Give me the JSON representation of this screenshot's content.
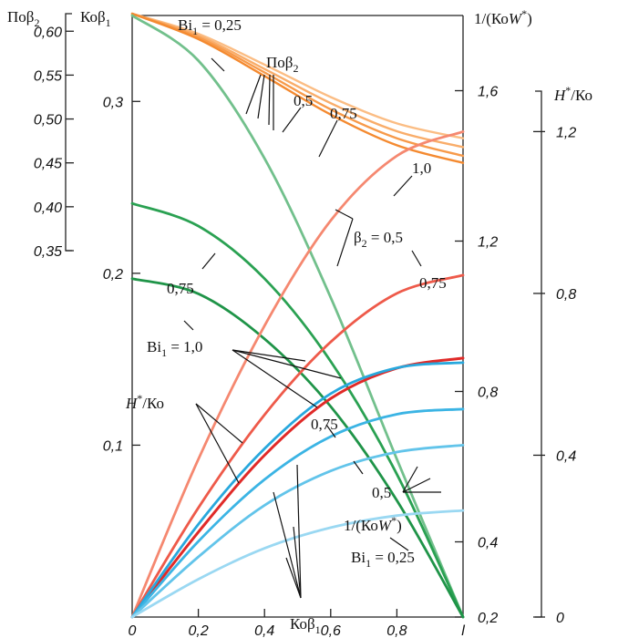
{
  "chart_data": {
    "type": "line",
    "title": "",
    "x_axis": {
      "range": [
        0,
        1
      ],
      "ticks": [
        {
          "value": 0,
          "label": "0"
        },
        {
          "value": 0.2,
          "label": "0,2"
        },
        {
          "value": 0.4,
          "label": "0,4"
        },
        {
          "value": 0.6,
          "label": "0,6"
        },
        {
          "value": 0.8,
          "label": "0,8"
        },
        {
          "value": 1,
          "label": "l"
        }
      ]
    },
    "axes": {
      "po_beta2": {
        "title_parts": [
          "Поβ",
          "2"
        ],
        "range": [
          0.35,
          0.62
        ],
        "ticks": [
          {
            "value": 0.6,
            "label": "0,60"
          },
          {
            "value": 0.55,
            "label": "0,55"
          },
          {
            "value": 0.5,
            "label": "0,50"
          },
          {
            "value": 0.45,
            "label": "0,45"
          },
          {
            "value": 0.4,
            "label": "0,40"
          },
          {
            "value": 0.35,
            "label": "0,35"
          }
        ]
      },
      "ko_beta1": {
        "title_parts": [
          "Коβ",
          "1"
        ],
        "range": [
          0,
          0.35
        ],
        "ticks": [
          {
            "value": 0.1,
            "label": "0,1"
          },
          {
            "value": 0.2,
            "label": "0,2"
          },
          {
            "value": 0.3,
            "label": "0,3"
          }
        ]
      },
      "inv_ko_w": {
        "title_parts": [
          "1/(Ко",
          "W",
          "*",
          ")"
        ],
        "range": [
          0.2,
          1.8
        ],
        "ticks": [
          {
            "value": 0.2,
            "label": "0,2"
          },
          {
            "value": 0.4,
            "label": "0,4"
          },
          {
            "value": 0.8,
            "label": "0,8"
          },
          {
            "value": 1.2,
            "label": "1,2"
          },
          {
            "value": 1.6,
            "label": "1,6"
          }
        ]
      },
      "h_ko": {
        "title_parts": [
          "H",
          "*",
          "/Ко"
        ],
        "range": [
          0,
          1.3
        ],
        "ticks": [
          {
            "value": 0,
            "label": "0"
          },
          {
            "value": 0.4,
            "label": "0,4"
          },
          {
            "value": 0.8,
            "label": "0,8"
          },
          {
            "value": 1.2,
            "label": "1,2"
          }
        ]
      }
    },
    "series": [
      {
        "group": "Поβ2",
        "axis": "po_beta2",
        "color": "#fbbd84",
        "width": 2.4,
        "x": [
          0,
          0.2,
          0.4,
          0.6,
          0.8,
          1.0
        ],
        "y": [
          0.62,
          0.597,
          0.562,
          0.525,
          0.495,
          0.478
        ]
      },
      {
        "group": "Поβ2",
        "axis": "po_beta2",
        "color": "#f9ad6a",
        "width": 2.4,
        "x": [
          0,
          0.2,
          0.4,
          0.6,
          0.8,
          1.0
        ],
        "y": [
          0.62,
          0.595,
          0.557,
          0.518,
          0.486,
          0.468
        ]
      },
      {
        "group": "Поβ2",
        "axis": "po_beta2",
        "color": "#f79a4a",
        "width": 2.4,
        "x": [
          0,
          0.2,
          0.4,
          0.6,
          0.8,
          1.0
        ],
        "y": [
          0.62,
          0.593,
          0.553,
          0.511,
          0.478,
          0.458
        ]
      },
      {
        "group": "Поβ2",
        "axis": "po_beta2",
        "color": "#f48a30",
        "width": 2.4,
        "x": [
          0,
          0.2,
          0.4,
          0.6,
          0.8,
          1.0
        ],
        "y": [
          0.62,
          0.591,
          0.549,
          0.505,
          0.47,
          0.45
        ]
      },
      {
        "group": "1/(КоW*)",
        "axis": "inv_ko_w",
        "color": "#72c08c",
        "width": 2.8,
        "x": [
          0,
          0.2,
          0.4,
          0.6,
          0.8,
          1.0
        ],
        "y": [
          1.8,
          1.68,
          1.42,
          1.05,
          0.62,
          0.2
        ]
      },
      {
        "group": "1/(КоW*)",
        "axis": "inv_ko_w",
        "color": "#2aa152",
        "width": 2.8,
        "x": [
          0,
          0.2,
          0.4,
          0.6,
          0.8,
          1.0
        ],
        "y": [
          1.3,
          1.24,
          1.1,
          0.88,
          0.58,
          0.2
        ]
      },
      {
        "group": "1/(КоW*)",
        "axis": "inv_ko_w",
        "color": "#1f9448",
        "width": 2.8,
        "x": [
          0,
          0.2,
          0.4,
          0.6,
          0.8,
          1.0
        ],
        "y": [
          1.1,
          1.06,
          0.94,
          0.76,
          0.51,
          0.2
        ]
      },
      {
        "group": "H*/Ко",
        "axis": "h_ko",
        "color": "#f58870",
        "width": 2.8,
        "x": [
          0,
          0.2,
          0.4,
          0.6,
          0.8,
          1.0
        ],
        "y": [
          0,
          0.39,
          0.72,
          0.98,
          1.14,
          1.2
        ]
      },
      {
        "group": "H*/Ко",
        "axis": "h_ko",
        "color": "#ee5a4a",
        "width": 2.8,
        "x": [
          0,
          0.2,
          0.4,
          0.6,
          0.8,
          1.0
        ],
        "y": [
          0,
          0.27,
          0.5,
          0.68,
          0.8,
          0.845
        ]
      },
      {
        "group": "H*/Ко",
        "axis": "h_ko",
        "color": "#e02a28",
        "width": 3.0,
        "x": [
          0,
          0.2,
          0.4,
          0.6,
          0.8,
          1.0
        ],
        "y": [
          0,
          0.21,
          0.4,
          0.54,
          0.615,
          0.64
        ]
      },
      {
        "group": "Коβ1",
        "axis": "ko_beta1",
        "color": "#28a8dd",
        "width": 2.8,
        "x": [
          0,
          0.2,
          0.4,
          0.6,
          0.8,
          1.0
        ],
        "y": [
          0,
          0.054,
          0.098,
          0.13,
          0.145,
          0.148
        ]
      },
      {
        "group": "Коβ1",
        "axis": "ko_beta1",
        "color": "#3bb4e4",
        "width": 2.8,
        "x": [
          0,
          0.2,
          0.4,
          0.6,
          0.8,
          1.0
        ],
        "y": [
          0,
          0.044,
          0.08,
          0.105,
          0.118,
          0.121
        ]
      },
      {
        "group": "Коβ1",
        "axis": "ko_beta1",
        "color": "#62c4ea",
        "width": 2.8,
        "x": [
          0,
          0.2,
          0.4,
          0.6,
          0.8,
          1.0
        ],
        "y": [
          0,
          0.035,
          0.065,
          0.085,
          0.096,
          0.1
        ]
      },
      {
        "group": "Коβ1",
        "axis": "ko_beta1",
        "color": "#9ad8f2",
        "width": 2.8,
        "x": [
          0,
          0.2,
          0.4,
          0.6,
          0.8,
          1.0
        ],
        "y": [
          0,
          0.022,
          0.04,
          0.052,
          0.059,
          0.062
        ]
      }
    ],
    "annotations": [
      {
        "id": "bi1-025-top",
        "parts": [
          [
            "Bi",
            ""
          ],
          [
            "1",
            "sub"
          ],
          [
            " = 0,25",
            ""
          ]
        ]
      },
      {
        "id": "po-beta2-label",
        "parts": [
          [
            "Поβ",
            ""
          ],
          [
            "2",
            "sub"
          ]
        ]
      },
      {
        "id": "lbl-05-top",
        "parts": [
          [
            "0,5",
            ""
          ]
        ]
      },
      {
        "id": "lbl-075-top",
        "parts": [
          [
            "0,75",
            ""
          ]
        ]
      },
      {
        "id": "lbl-10-top",
        "parts": [
          [
            "1,0",
            ""
          ]
        ]
      },
      {
        "id": "beta2-05",
        "parts": [
          [
            "β",
            ""
          ],
          [
            "2",
            "sub"
          ],
          [
            " = 0,5",
            ""
          ]
        ]
      },
      {
        "id": "lbl-075-right",
        "parts": [
          [
            "0,75",
            ""
          ]
        ]
      },
      {
        "id": "lbl-075-left",
        "parts": [
          [
            "0,75",
            ""
          ]
        ]
      },
      {
        "id": "bi1-10",
        "parts": [
          [
            "Bi",
            ""
          ],
          [
            "1",
            "sub"
          ],
          [
            " = 1,0",
            ""
          ]
        ]
      },
      {
        "id": "h-ko-label",
        "parts": [
          [
            "H",
            "ital"
          ],
          [
            "*",
            "sup"
          ],
          [
            "/Ко",
            ""
          ]
        ]
      },
      {
        "id": "lbl-075-mid",
        "parts": [
          [
            "0,75",
            ""
          ]
        ]
      },
      {
        "id": "lbl-05-mid",
        "parts": [
          [
            "0,5",
            ""
          ]
        ]
      },
      {
        "id": "inv-ko-w-label",
        "parts": [
          [
            "1/(Ко",
            ""
          ],
          [
            "W",
            "ital"
          ],
          [
            "*",
            "sup"
          ],
          [
            ")",
            ""
          ]
        ]
      },
      {
        "id": "bi1-025-bottom",
        "parts": [
          [
            "Bi",
            ""
          ],
          [
            "1",
            "sub"
          ],
          [
            " = 0,25",
            ""
          ]
        ]
      },
      {
        "id": "ko-beta1-label",
        "parts": [
          [
            "Коβ",
            ""
          ],
          [
            "1",
            "sub"
          ]
        ]
      }
    ]
  }
}
